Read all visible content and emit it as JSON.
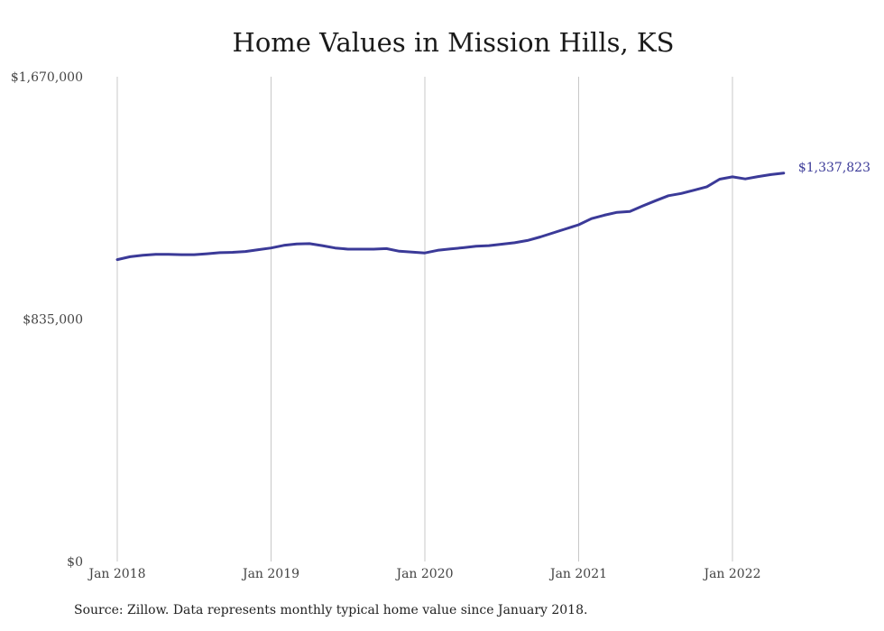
{
  "chart_data": {
    "type": "line",
    "title": "Home Values in Mission Hills, KS",
    "xlabel": "",
    "ylabel": "",
    "ylim": [
      0,
      1670000
    ],
    "y_ticks": [
      "$0",
      "$835,000",
      "$1,670,000"
    ],
    "y_tick_values": [
      0,
      835000,
      1670000
    ],
    "x_ticks": [
      "Jan 2018",
      "Jan 2019",
      "Jan 2020",
      "Jan 2021",
      "Jan 2022"
    ],
    "x_tick_dates": [
      "2018-01",
      "2019-01",
      "2020-01",
      "2021-01",
      "2022-01"
    ],
    "grid": "vertical gridlines at each January",
    "series": [
      {
        "color": "#3b3a98",
        "end_label": "$1,337,823",
        "x": [
          "2018-01",
          "2018-02",
          "2018-03",
          "2018-04",
          "2018-05",
          "2018-06",
          "2018-07",
          "2018-08",
          "2018-09",
          "2018-10",
          "2018-11",
          "2018-12",
          "2019-01",
          "2019-02",
          "2019-03",
          "2019-04",
          "2019-05",
          "2019-06",
          "2019-07",
          "2019-08",
          "2019-09",
          "2019-10",
          "2019-11",
          "2019-12",
          "2020-01",
          "2020-02",
          "2020-03",
          "2020-04",
          "2020-05",
          "2020-06",
          "2020-07",
          "2020-08",
          "2020-09",
          "2020-10",
          "2020-11",
          "2020-12",
          "2021-01",
          "2021-02",
          "2021-03",
          "2021-04",
          "2021-05",
          "2021-06",
          "2021-07",
          "2021-08",
          "2021-09",
          "2021-10",
          "2021-11",
          "2021-12",
          "2022-01",
          "2022-02",
          "2022-03",
          "2022-04",
          "2022-05"
        ],
        "values": [
          1040000,
          1050000,
          1055000,
          1058000,
          1058000,
          1057000,
          1057000,
          1060000,
          1064000,
          1065000,
          1068000,
          1074000,
          1080000,
          1089000,
          1094000,
          1095000,
          1088000,
          1080000,
          1076000,
          1076000,
          1076000,
          1078000,
          1069000,
          1066000,
          1063000,
          1072000,
          1077000,
          1081000,
          1086000,
          1088000,
          1093000,
          1098000,
          1106000,
          1118000,
          1132000,
          1146000,
          1160000,
          1181000,
          1193000,
          1203000,
          1206000,
          1225000,
          1243000,
          1260000,
          1268000,
          1279000,
          1291000,
          1317000,
          1325000,
          1318000,
          1326000,
          1333000,
          1337823
        ]
      }
    ]
  },
  "source_note": "Source: Zillow. Data represents monthly typical home value since January 2018."
}
